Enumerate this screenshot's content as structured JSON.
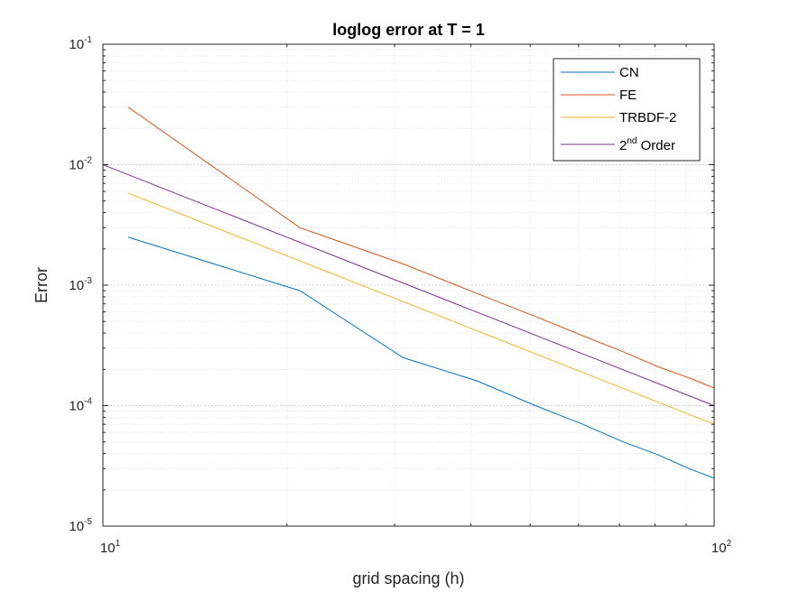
{
  "chart_data": {
    "type": "line",
    "title": "loglog error at T = 1",
    "xlabel": "grid spacing (h)",
    "ylabel": "Error",
    "xscale": "log",
    "yscale": "log",
    "xlim": [
      10,
      100
    ],
    "ylim": [
      1e-05,
      0.1
    ],
    "grid": true,
    "legend_position": "top-right",
    "x_ticks": [
      {
        "base": "10",
        "exp": "1"
      },
      {
        "base": "10",
        "exp": "2"
      }
    ],
    "y_ticks": [
      {
        "base": "10",
        "exp": "-5"
      },
      {
        "base": "10",
        "exp": "-4"
      },
      {
        "base": "10",
        "exp": "-3"
      },
      {
        "base": "10",
        "exp": "-2"
      },
      {
        "base": "10",
        "exp": "-1"
      }
    ],
    "series": [
      {
        "name": "CN",
        "color": "#0072BD",
        "x": [
          11,
          21,
          31,
          41,
          51,
          61,
          71,
          81,
          91,
          100
        ],
        "y": [
          0.0025,
          0.0009,
          0.00025,
          0.00016,
          0.0001,
          7e-05,
          5e-05,
          3.9e-05,
          3e-05,
          2.5e-05
        ]
      },
      {
        "name": "FE",
        "color": "#D95319",
        "x": [
          11,
          21,
          31,
          41,
          51,
          61,
          71,
          81,
          91,
          100
        ],
        "y": [
          0.03,
          0.003,
          0.0015,
          0.00085,
          0.00055,
          0.00038,
          0.00028,
          0.00021,
          0.00017,
          0.00014
        ]
      },
      {
        "name": "TRBDF-2",
        "color": "#EDB120",
        "x": [
          11,
          100
        ],
        "y": [
          0.0058,
          7e-05
        ]
      },
      {
        "name_base": "2",
        "name_sup": "nd",
        "name_rest": " Order",
        "color": "#7E2F8E",
        "x": [
          10,
          100
        ],
        "y": [
          0.01,
          0.0001
        ]
      }
    ]
  }
}
